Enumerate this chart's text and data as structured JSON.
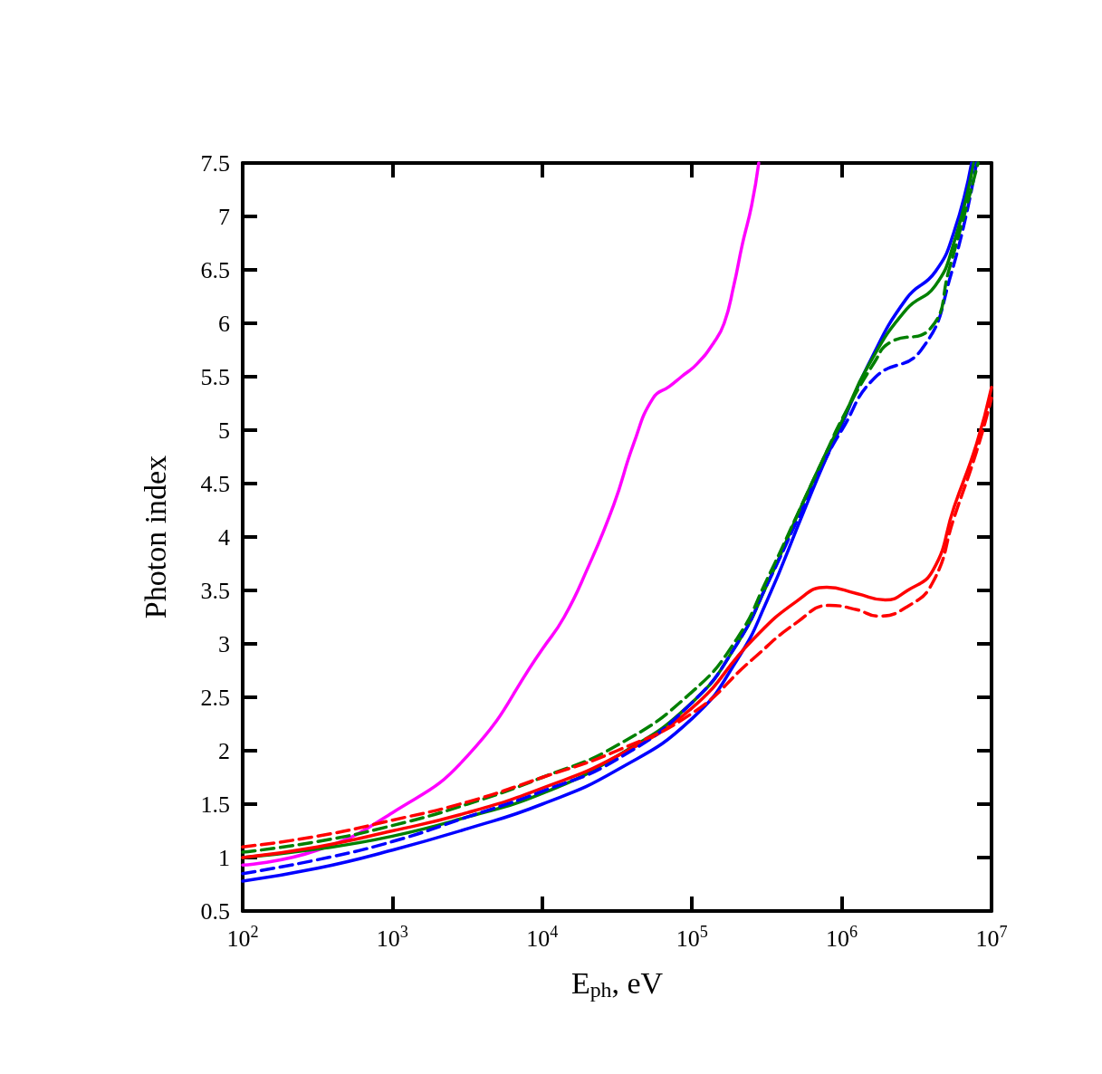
{
  "chart_data": {
    "type": "line",
    "xlabel": "E$_{ph}$, eV",
    "ylabel": "Photon index",
    "log": "x",
    "marker": "none",
    "xlim": [
      100,
      10000000
    ],
    "xticks": [
      {
        "value": 100,
        "label": "10$^{2}$"
      },
      {
        "value": 1000,
        "label": "10$^{3}$"
      },
      {
        "value": 10000,
        "label": "10$^{4}$"
      },
      {
        "value": 100000,
        "label": "10$^{5}$"
      },
      {
        "value": 1000000,
        "label": "10$^{6}$"
      },
      {
        "value": 10000000,
        "label": "10$^{7}$"
      }
    ],
    "ylim": [
      0.5,
      7.5
    ],
    "yticks": [
      0.5,
      1,
      1.5,
      2,
      2.5,
      3,
      3.5,
      4,
      4.5,
      5,
      5.5,
      6,
      6.5,
      7,
      7.5
    ],
    "series": [
      {
        "color": "#ff00ff",
        "line_style": "solid",
        "x": [
          100,
          316,
          1000,
          3162,
          10000,
          14000,
          20000,
          30000,
          40700,
          55000,
          70800,
          85000,
          108000,
          140000,
          164000,
          190000,
          217000,
          250000,
          279000
        ],
        "values": [
          0.93,
          1.07,
          1.42,
          1.95,
          2.95,
          3.25,
          3.7,
          4.3,
          4.87,
          5.3,
          5.41,
          5.5,
          5.62,
          5.82,
          6.0,
          6.35,
          6.74,
          7.1,
          7.5
        ]
      },
      {
        "color": "#0000ff",
        "line_style": "solid",
        "x": [
          100,
          316,
          1000,
          3162,
          10000,
          31623,
          100000,
          200000,
          316228,
          562000,
          794000,
          1000000,
          1500000,
          2700000,
          4200000,
          5600000,
          7360000
        ],
        "values": [
          0.78,
          0.9,
          1.07,
          1.27,
          1.5,
          1.82,
          2.3,
          2.85,
          3.4,
          4.25,
          4.75,
          5.05,
          5.61,
          6.23,
          6.48,
          6.85,
          7.5
        ]
      },
      {
        "color": "#0000ff",
        "line_style": "dashed",
        "x": [
          100,
          316,
          1000,
          3162,
          10000,
          31623,
          100000,
          200000,
          316228,
          562000,
          794000,
          1000000,
          1660000,
          3390000,
          5370000,
          7940000
        ],
        "values": [
          0.85,
          0.98,
          1.15,
          1.38,
          1.62,
          1.92,
          2.45,
          3.0,
          3.55,
          4.3,
          4.75,
          5.0,
          5.49,
          5.75,
          6.46,
          7.5
        ]
      },
      {
        "color": "#008000",
        "line_style": "solid",
        "x": [
          100,
          316,
          1000,
          3162,
          10000,
          31623,
          100000,
          200000,
          316228,
          562000,
          794000,
          1000000,
          1500000,
          2700000,
          4200000,
          5600000,
          7600000
        ],
        "values": [
          1.0,
          1.08,
          1.2,
          1.38,
          1.6,
          1.95,
          2.45,
          3.0,
          3.55,
          4.35,
          4.8,
          5.08,
          5.6,
          6.13,
          6.35,
          6.75,
          7.5
        ]
      },
      {
        "color": "#008000",
        "line_style": "dashed",
        "x": [
          100,
          316,
          1000,
          3162,
          10000,
          31623,
          100000,
          200000,
          316228,
          562000,
          794000,
          1000000,
          1660000,
          2100000,
          3900000,
          5200000,
          8130000
        ],
        "values": [
          1.05,
          1.15,
          1.3,
          1.5,
          1.75,
          2.05,
          2.55,
          3.05,
          3.6,
          4.35,
          4.8,
          5.1,
          5.64,
          5.82,
          5.95,
          6.5,
          7.5
        ]
      },
      {
        "color": "#ff0000",
        "line_style": "solid",
        "x": [
          100,
          316,
          1000,
          3162,
          10000,
          31623,
          100000,
          251000,
          501000,
          794000,
          1260000,
          1950000,
          2750000,
          4070000,
          5620000,
          7940000,
          10000000
        ],
        "values": [
          1.0,
          1.1,
          1.25,
          1.42,
          1.65,
          1.95,
          2.4,
          3.03,
          3.4,
          3.53,
          3.47,
          3.41,
          3.5,
          3.69,
          4.28,
          4.87,
          5.4
        ]
      },
      {
        "color": "#ff0000",
        "line_style": "dashed",
        "x": [
          100,
          316,
          1000,
          3162,
          10000,
          31623,
          100000,
          251000,
          501000,
          832000,
          1260000,
          1740000,
          2750000,
          4070000,
          5620000,
          7940000,
          10000000
        ],
        "values": [
          1.1,
          1.2,
          1.35,
          1.52,
          1.75,
          2.0,
          2.35,
          2.85,
          3.2,
          3.36,
          3.32,
          3.26,
          3.35,
          3.58,
          4.18,
          4.8,
          5.3
        ]
      }
    ]
  }
}
